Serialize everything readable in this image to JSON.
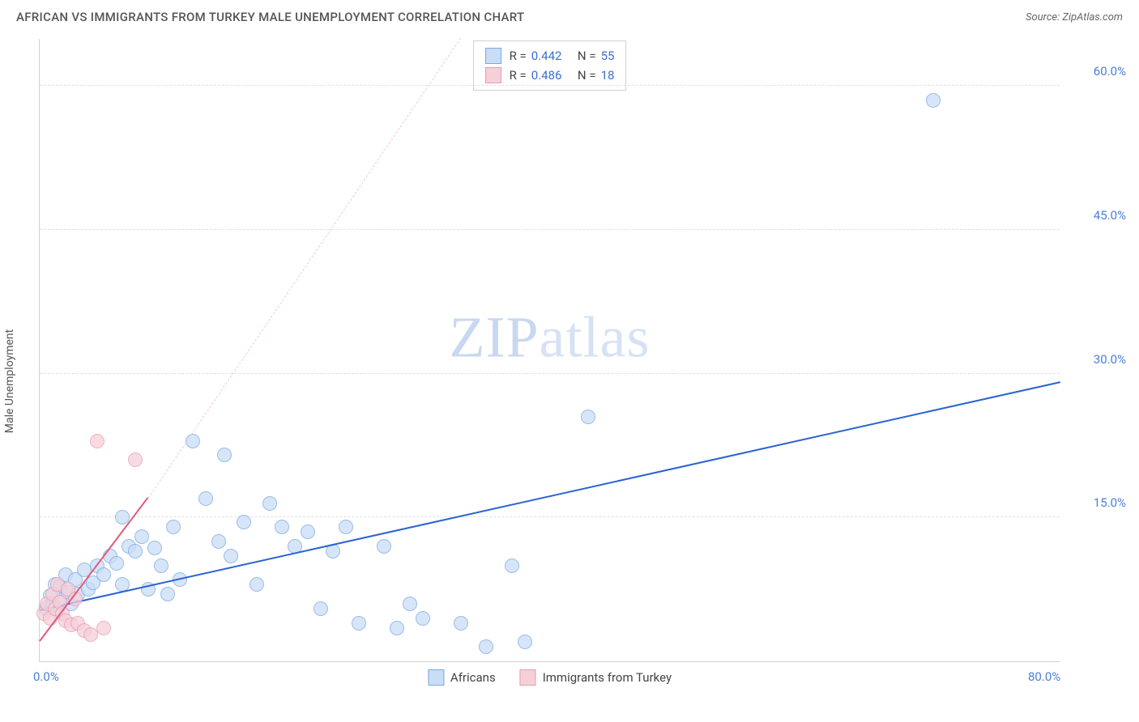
{
  "header": {
    "title": "AFRICAN VS IMMIGRANTS FROM TURKEY MALE UNEMPLOYMENT CORRELATION CHART",
    "source": "Source: ZipAtlas.com"
  },
  "ylabel": "Male Unemployment",
  "watermark": {
    "part1": "ZIP",
    "part2": "atlas"
  },
  "chart": {
    "type": "scatter",
    "background_color": "#ffffff",
    "grid_color": "#e0e0e0",
    "axis_color": "#d0d0d0",
    "tick_color": "#4a7fd8",
    "tick_fontsize": 15,
    "xlim": [
      0,
      80
    ],
    "ylim": [
      0,
      65
    ],
    "yticks": [
      15,
      30,
      45,
      60
    ],
    "ytick_labels": [
      "15.0%",
      "30.0%",
      "45.0%",
      "60.0%"
    ],
    "xticks": [
      0,
      80
    ],
    "xtick_labels": [
      "0.0%",
      "80.0%"
    ],
    "series": [
      {
        "name": "Africans",
        "fill": "#c9ddf6",
        "stroke": "#7aa8e0",
        "marker_radius": 9,
        "fill_opacity": 0.75,
        "trend": {
          "color": "#2a63d4",
          "width": 2.5,
          "x1": 0,
          "y1": 5.2,
          "x2": 80,
          "y2": 29.0,
          "dashed": false,
          "extend_dashed": false
        },
        "R": "0.442",
        "N": "55",
        "points": [
          [
            0.5,
            5.5
          ],
          [
            0.8,
            6.8
          ],
          [
            1.0,
            6.0
          ],
          [
            1.2,
            8.0
          ],
          [
            1.4,
            5.2
          ],
          [
            1.6,
            7.8
          ],
          [
            1.8,
            6.5
          ],
          [
            2.0,
            9.0
          ],
          [
            2.2,
            7.2
          ],
          [
            2.5,
            6.0
          ],
          [
            2.8,
            8.5
          ],
          [
            3.0,
            7.0
          ],
          [
            3.5,
            9.5
          ],
          [
            3.8,
            7.5
          ],
          [
            4.2,
            8.2
          ],
          [
            4.5,
            10.0
          ],
          [
            5.0,
            9.0
          ],
          [
            5.5,
            11.0
          ],
          [
            6.0,
            10.2
          ],
          [
            6.5,
            8.0
          ],
          [
            7.0,
            12.0
          ],
          [
            7.5,
            11.5
          ],
          [
            8.0,
            13.0
          ],
          [
            8.5,
            7.5
          ],
          [
            9.0,
            11.8
          ],
          [
            9.5,
            10.0
          ],
          [
            10.0,
            7.0
          ],
          [
            10.5,
            14.0
          ],
          [
            11.0,
            8.5
          ],
          [
            12.0,
            23.0
          ],
          [
            13.0,
            17.0
          ],
          [
            14.0,
            12.5
          ],
          [
            14.5,
            21.5
          ],
          [
            15.0,
            11.0
          ],
          [
            16.0,
            14.5
          ],
          [
            17.0,
            8.0
          ],
          [
            18.0,
            16.5
          ],
          [
            19.0,
            14.0
          ],
          [
            20.0,
            12.0
          ],
          [
            21.0,
            13.5
          ],
          [
            22.0,
            5.5
          ],
          [
            23.0,
            11.5
          ],
          [
            24.0,
            14.0
          ],
          [
            25.0,
            4.0
          ],
          [
            27.0,
            12.0
          ],
          [
            28.0,
            3.5
          ],
          [
            29.0,
            6.0
          ],
          [
            30.0,
            4.5
          ],
          [
            33.0,
            4.0
          ],
          [
            35.0,
            1.5
          ],
          [
            37.0,
            10.0
          ],
          [
            38.0,
            2.0
          ],
          [
            43.0,
            25.5
          ],
          [
            70.0,
            58.5
          ],
          [
            6.5,
            15.0
          ]
        ]
      },
      {
        "name": "Immigrants from Turkey",
        "fill": "#f6d0d9",
        "stroke": "#e89ab0",
        "marker_radius": 9,
        "fill_opacity": 0.75,
        "trend": {
          "color": "#e05a7a",
          "width": 2.5,
          "x1": 0,
          "y1": 2.0,
          "x2": 8.5,
          "y2": 17.0,
          "dashed": false,
          "extend_dashed": true,
          "ext_color": "#f3c9d3",
          "ext_x2": 33,
          "ext_y2": 65
        },
        "R": "0.486",
        "N": "18",
        "points": [
          [
            0.3,
            5.0
          ],
          [
            0.6,
            6.0
          ],
          [
            0.8,
            4.5
          ],
          [
            1.0,
            7.0
          ],
          [
            1.2,
            5.5
          ],
          [
            1.4,
            8.0
          ],
          [
            1.6,
            6.2
          ],
          [
            1.8,
            5.0
          ],
          [
            2.0,
            4.2
          ],
          [
            2.2,
            7.5
          ],
          [
            2.5,
            3.8
          ],
          [
            2.8,
            6.5
          ],
          [
            3.0,
            4.0
          ],
          [
            3.5,
            3.2
          ],
          [
            4.0,
            2.8
          ],
          [
            4.5,
            23.0
          ],
          [
            5.0,
            3.5
          ],
          [
            7.5,
            21.0
          ]
        ]
      }
    ],
    "corr_legend": {
      "border_color": "#d0d0d0",
      "label_color": "#444444",
      "value_color": "#3b6fd0"
    },
    "series_legend": {
      "fontsize": 15,
      "color": "#444444"
    }
  }
}
